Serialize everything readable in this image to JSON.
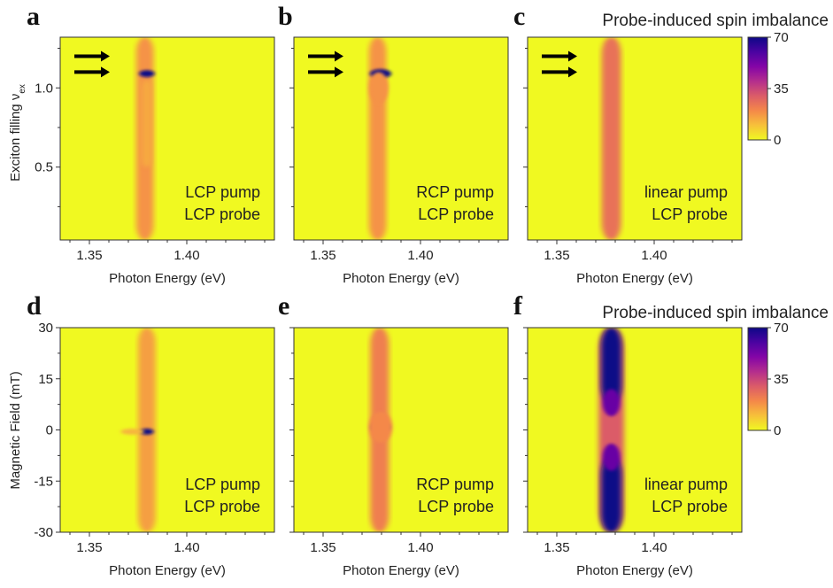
{
  "colormap": {
    "name": "plasma-reversed",
    "stops": [
      "#f0f921",
      "#f7c13a",
      "#f48849",
      "#db5c68",
      "#b42e8d",
      "#8405a7",
      "#4b03a1",
      "#0d0887"
    ]
  },
  "chart_data": [
    {
      "id": "a",
      "type": "heatmap",
      "panel_label": "a",
      "annotation": [
        "LCP pump",
        "LCP probe"
      ],
      "xlabel": "Photon Energy (eV)",
      "ylabel": "Exciton filling ν",
      "ylabel_sub": "ex",
      "xlim": [
        1.335,
        1.445
      ],
      "ylim": [
        0.04,
        1.32
      ],
      "xticks": [
        1.35,
        1.4
      ],
      "xtick_labels": [
        "1.35",
        "1.40"
      ],
      "yticks": [
        0.5,
        1.0
      ],
      "ytick_labels": [
        "0.5",
        "1.0"
      ],
      "arrows_y": [
        1.2,
        1.1
      ],
      "features": [
        {
          "shape": "band",
          "x_center": 1.3785,
          "x_width": 0.0045,
          "y_range": [
            0.04,
            1.32
          ],
          "value": 18
        },
        {
          "shape": "band",
          "x_center": 1.3795,
          "x_width": 0.0025,
          "y_range": [
            0.5,
            1.05
          ],
          "value": 14
        },
        {
          "shape": "spot",
          "x_center": 1.3795,
          "y_center": 1.09,
          "x_width": 0.004,
          "y_width": 0.022,
          "value": 70
        }
      ]
    },
    {
      "id": "b",
      "type": "heatmap",
      "panel_label": "b",
      "annotation": [
        "RCP pump",
        "LCP probe"
      ],
      "xlabel": "Photon Energy (eV)",
      "xlim": [
        1.335,
        1.445
      ],
      "ylim": [
        0.04,
        1.32
      ],
      "xticks": [
        1.35,
        1.4
      ],
      "xtick_labels": [
        "1.35",
        "1.40"
      ],
      "yticks": [
        0.5,
        1.0
      ],
      "arrows_y": [
        1.2,
        1.1
      ],
      "features": [
        {
          "shape": "band",
          "x_center": 1.378,
          "x_width": 0.0045,
          "y_range": [
            0.04,
            1.32
          ],
          "value": 18
        },
        {
          "shape": "spot",
          "x_center": 1.3795,
          "y_center": 1.09,
          "x_width": 0.0055,
          "y_width": 0.028,
          "value": 70
        },
        {
          "shape": "spot",
          "x_center": 1.3785,
          "y_center": 1.0,
          "x_width": 0.005,
          "y_width": 0.1,
          "value": 18
        }
      ]
    },
    {
      "id": "c",
      "type": "heatmap",
      "panel_label": "c",
      "annotation": [
        "linear pump",
        "LCP probe"
      ],
      "xlabel": "Photon Energy (eV)",
      "xlim": [
        1.335,
        1.445
      ],
      "ylim": [
        0.04,
        1.32
      ],
      "xticks": [
        1.35,
        1.4
      ],
      "xtick_labels": [
        "1.35",
        "1.40"
      ],
      "yticks": [
        0.5,
        1.0
      ],
      "arrows_y": [
        1.2,
        1.1
      ],
      "colorbar": {
        "title": "Probe-induced spin imbalance",
        "min": 0,
        "max": 70,
        "ticks": [
          0,
          35,
          70
        ],
        "tick_labels": [
          "0",
          "35",
          "70"
        ]
      },
      "features": [
        {
          "shape": "band",
          "x_center": 1.378,
          "x_width": 0.005,
          "y_range": [
            0.04,
            1.32
          ],
          "value": 25
        }
      ]
    },
    {
      "id": "d",
      "type": "heatmap",
      "panel_label": "d",
      "annotation": [
        "LCP pump",
        "LCP probe"
      ],
      "xlabel": "Photon Energy (eV)",
      "ylabel": "Magnetic Field (mT)",
      "xlim": [
        1.335,
        1.445
      ],
      "ylim": [
        -30,
        30
      ],
      "xticks": [
        1.35,
        1.4
      ],
      "xtick_labels": [
        "1.35",
        "1.40"
      ],
      "yticks": [
        -30,
        -15,
        0,
        15,
        30
      ],
      "ytick_labels": [
        "-30",
        "-15",
        "0",
        "15",
        "30"
      ],
      "features": [
        {
          "shape": "band",
          "x_center": 1.3795,
          "x_width": 0.0045,
          "y_range": [
            -30,
            30
          ],
          "value": 16
        },
        {
          "shape": "spot",
          "x_center": 1.3795,
          "y_center": -0.5,
          "x_width": 0.0035,
          "y_width": 0.9,
          "value": 70
        },
        {
          "shape": "spot",
          "x_center": 1.372,
          "y_center": -0.5,
          "x_width": 0.006,
          "y_width": 0.9,
          "value": 12
        }
      ]
    },
    {
      "id": "e",
      "type": "heatmap",
      "panel_label": "e",
      "annotation": [
        "RCP pump",
        "LCP probe"
      ],
      "xlabel": "Photon Energy (eV)",
      "xlim": [
        1.335,
        1.445
      ],
      "ylim": [
        -30,
        30
      ],
      "xticks": [
        1.35,
        1.4
      ],
      "xtick_labels": [
        "1.35",
        "1.40"
      ],
      "yticks": [
        -30,
        -15,
        0,
        15,
        30
      ],
      "features": [
        {
          "shape": "band",
          "x_center": 1.379,
          "x_width": 0.0048,
          "y_range": [
            -30,
            30
          ],
          "value": 22
        },
        {
          "shape": "spot",
          "x_center": 1.3795,
          "y_center": 0.8,
          "x_width": 0.0045,
          "y_width": 1.4,
          "value": 70
        },
        {
          "shape": "spot",
          "x_center": 1.3795,
          "y_center": 0.8,
          "x_width": 0.006,
          "y_width": 4.5,
          "value": 20
        }
      ]
    },
    {
      "id": "f",
      "type": "heatmap",
      "panel_label": "f",
      "annotation": [
        "linear pump",
        "LCP probe"
      ],
      "xlabel": "Photon Energy (eV)",
      "xlim": [
        1.335,
        1.445
      ],
      "ylim": [
        -30,
        30
      ],
      "xticks": [
        1.35,
        1.4
      ],
      "xtick_labels": [
        "1.35",
        "1.40"
      ],
      "yticks": [
        -30,
        -15,
        0,
        15,
        30
      ],
      "colorbar": {
        "title": "Probe-induced spin imbalance",
        "min": 0,
        "max": 70,
        "ticks": [
          0,
          35,
          70
        ],
        "tick_labels": [
          "0",
          "35",
          "70"
        ]
      },
      "features": [
        {
          "shape": "band",
          "x_center": 1.378,
          "x_width": 0.0065,
          "y_range": [
            -30,
            30
          ],
          "value": 30
        },
        {
          "shape": "band",
          "x_center": 1.378,
          "x_width": 0.0052,
          "y_range": [
            8,
            30
          ],
          "value": 70
        },
        {
          "shape": "band",
          "x_center": 1.378,
          "x_width": 0.0052,
          "y_range": [
            -30,
            -8
          ],
          "value": 70
        },
        {
          "shape": "spot",
          "x_center": 1.378,
          "y_center": 8,
          "x_width": 0.0045,
          "y_width": 4,
          "value": 55
        },
        {
          "shape": "spot",
          "x_center": 1.378,
          "y_center": -8,
          "x_width": 0.0045,
          "y_width": 4,
          "value": 55
        }
      ]
    }
  ]
}
